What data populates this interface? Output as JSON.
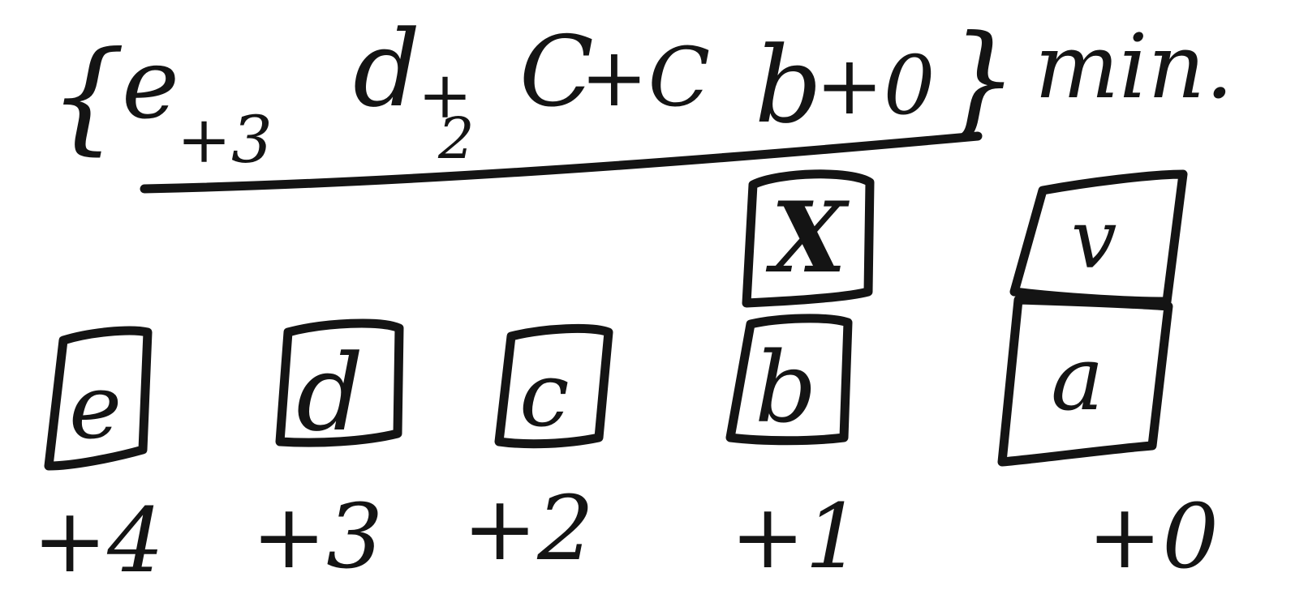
{
  "formula": {
    "open_brace": "{",
    "terms": [
      {
        "letter": "e",
        "sub": "+3"
      },
      {
        "letter": "d",
        "sub": "+"
      },
      {
        "letter": "C",
        "sub": "+C"
      },
      {
        "letter": "b",
        "sub": "+0"
      }
    ],
    "d_sub_extra": "2",
    "close_brace": "}",
    "suffix": "min."
  },
  "boxes": [
    {
      "letter": "e",
      "label": "+4"
    },
    {
      "letter": "d",
      "label": "+3"
    },
    {
      "letter": "c",
      "label": "+2"
    },
    {
      "letter": "b",
      "label": "+1"
    },
    {
      "letter": "a",
      "label": "+0"
    }
  ],
  "stacked_boxes": [
    {
      "letter": "X",
      "above": "b"
    },
    {
      "letter": "v",
      "above": "a"
    }
  ]
}
